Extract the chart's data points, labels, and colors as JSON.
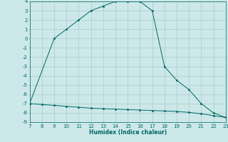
{
  "title": "",
  "xlabel": "Humidex (Indice chaleur)",
  "bg_color": "#cce8e8",
  "line_color": "#006868",
  "grid_color": "#aacece",
  "upper_x": [
    7,
    9,
    10,
    11,
    12,
    13,
    14,
    15,
    16,
    17,
    18,
    19,
    20,
    21,
    22,
    23
  ],
  "upper_y": [
    -7.0,
    0.0,
    1.0,
    2.0,
    3.0,
    3.5,
    4.0,
    4.0,
    4.0,
    3.0,
    -3.0,
    -4.5,
    -5.5,
    -7.0,
    -8.0,
    -8.5
  ],
  "lower_x": [
    7,
    8,
    9,
    10,
    11,
    12,
    13,
    14,
    15,
    16,
    17,
    18,
    19,
    20,
    21,
    22,
    23
  ],
  "lower_y": [
    -7.0,
    -7.1,
    -7.2,
    -7.3,
    -7.4,
    -7.5,
    -7.55,
    -7.6,
    -7.65,
    -7.7,
    -7.75,
    -7.8,
    -7.85,
    -7.95,
    -8.1,
    -8.3,
    -8.5
  ],
  "xlim": [
    7,
    23
  ],
  "ylim": [
    -9,
    4
  ],
  "xticks": [
    7,
    8,
    9,
    10,
    11,
    12,
    13,
    14,
    15,
    16,
    17,
    18,
    19,
    20,
    21,
    22,
    23
  ],
  "yticks": [
    4,
    3,
    2,
    1,
    0,
    -1,
    -2,
    -3,
    -4,
    -5,
    -6,
    -7,
    -8,
    -9
  ],
  "axis_fontsize": 5.5,
  "tick_fontsize": 5.0,
  "marker": "*",
  "marker_size": 2.5,
  "linewidth": 0.7
}
